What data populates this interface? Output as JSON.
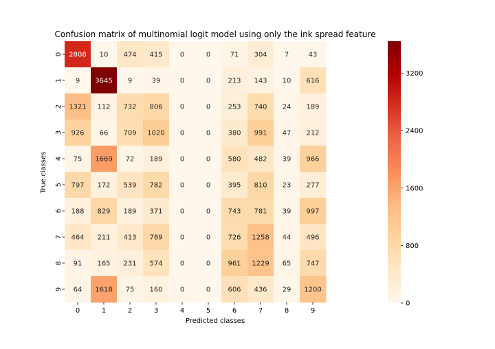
{
  "chart_data": {
    "type": "heatmap",
    "title": "Confusion matrix of multinomial logit model using only the ink spread feature",
    "xlabel": "Predicted classes",
    "ylabel": "True classes",
    "x_categories": [
      "0",
      "1",
      "2",
      "3",
      "4",
      "5",
      "6",
      "7",
      "8",
      "9"
    ],
    "y_categories": [
      "0",
      "1",
      "2",
      "3",
      "4",
      "5",
      "6",
      "7",
      "8",
      "9"
    ],
    "values": [
      [
        2808,
        10,
        474,
        415,
        0,
        0,
        71,
        304,
        7,
        43
      ],
      [
        9,
        3645,
        9,
        39,
        0,
        0,
        213,
        143,
        10,
        616
      ],
      [
        1321,
        112,
        732,
        806,
        0,
        0,
        253,
        740,
        24,
        189
      ],
      [
        926,
        66,
        709,
        1020,
        0,
        0,
        380,
        991,
        47,
        212
      ],
      [
        75,
        1669,
        72,
        189,
        0,
        0,
        580,
        482,
        39,
        966
      ],
      [
        797,
        172,
        539,
        782,
        0,
        0,
        395,
        810,
        23,
        277
      ],
      [
        188,
        829,
        189,
        371,
        0,
        0,
        743,
        781,
        39,
        997
      ],
      [
        464,
        211,
        413,
        789,
        0,
        0,
        726,
        1258,
        44,
        496
      ],
      [
        91,
        165,
        231,
        574,
        0,
        0,
        961,
        1229,
        65,
        747
      ],
      [
        64,
        1618,
        75,
        160,
        0,
        0,
        606,
        436,
        29,
        1200
      ]
    ],
    "colorbar": {
      "ticks": [
        0,
        800,
        1600,
        2400,
        3200
      ],
      "vmin": 0,
      "vmax": 3645,
      "colormap": "OrRd"
    },
    "colors": {
      "low": "#fff7ec",
      "high": "#7f0000",
      "text_dark": "#262626",
      "text_light": "#ffffff"
    }
  }
}
